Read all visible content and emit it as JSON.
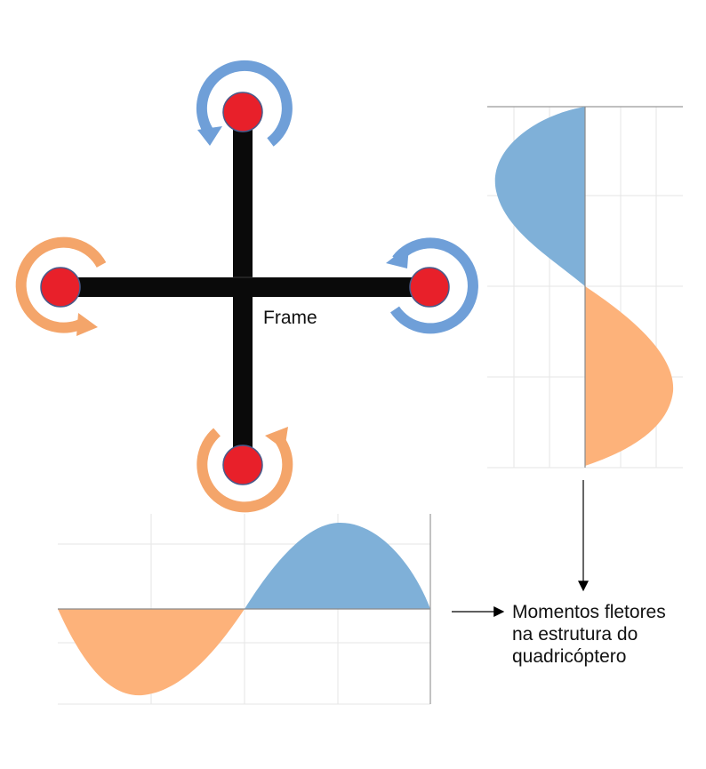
{
  "frame_label": "Frame",
  "caption_lines": [
    "Momentos fletores",
    "na estrutura do",
    "quadricóptero"
  ],
  "colors": {
    "arm": "#0a0a0a",
    "motor": "#e8202a",
    "motor_outline": "#4a5a8a",
    "clockwise_arrow": "#6f9fd8",
    "counterclockwise_arrow": "#f4a56a",
    "moment_positive_fill": "#7fb0d8",
    "moment_negative_fill": "#fdb27a",
    "grid": "#e6e6e6",
    "axis": "#9a9a9a"
  },
  "motors": [
    {
      "name": "top",
      "rotation_arrow": "blue"
    },
    {
      "name": "left",
      "rotation_arrow": "orange"
    },
    {
      "name": "right",
      "rotation_arrow": "blue"
    },
    {
      "name": "bottom",
      "rotation_arrow": "orange"
    }
  ]
}
